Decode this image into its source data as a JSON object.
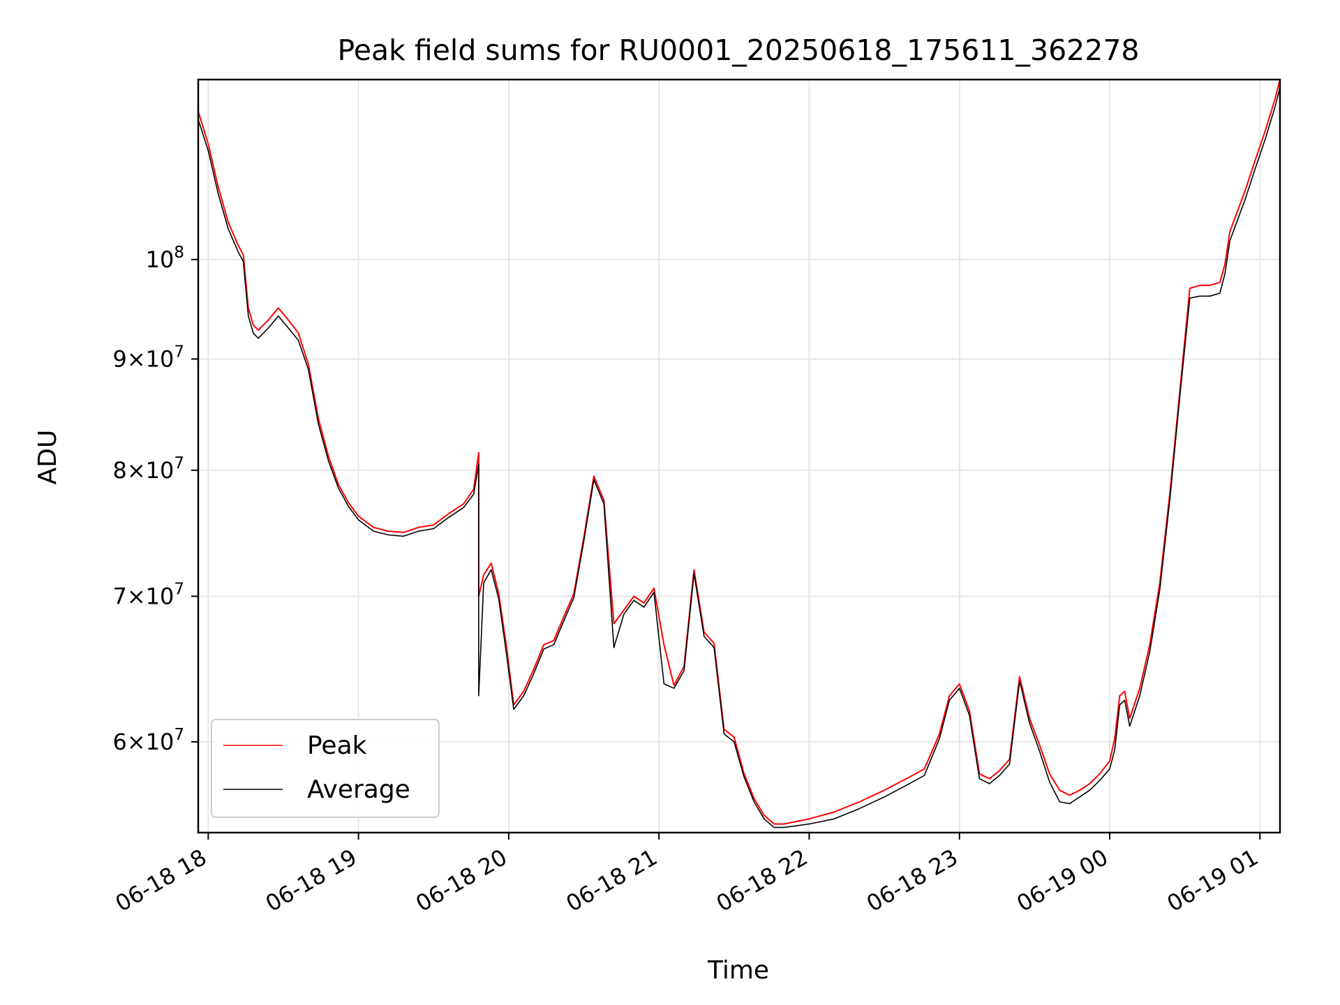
{
  "chart_data": {
    "type": "line",
    "title": "Peak field sums for RU0001_20250618_175611_362278",
    "xlabel": "Time",
    "ylabel": "ADU",
    "yscale": "log",
    "ylim": [
      54500000,
      121000000
    ],
    "xlim": [
      "2025-06-18T17:56",
      "2025-06-19T01:08"
    ],
    "grid": true,
    "legend_position": "lower-left",
    "x_ticks": [
      "2025-06-18T18:00",
      "2025-06-18T19:00",
      "2025-06-18T20:00",
      "2025-06-18T21:00",
      "2025-06-18T22:00",
      "2025-06-18T23:00",
      "2025-06-19T00:00",
      "2025-06-19T01:00"
    ],
    "x_tick_labels": [
      "06-18 18",
      "06-18 19",
      "06-18 20",
      "06-18 21",
      "06-18 22",
      "06-18 23",
      "06-19 00",
      "06-19 01"
    ],
    "y_ticks": [
      {
        "value": 100000000,
        "mantissa": "",
        "exponent": "8"
      },
      {
        "value": 90000000,
        "mantissa": "9",
        "exponent": "7"
      },
      {
        "value": 80000000,
        "mantissa": "8",
        "exponent": "7"
      },
      {
        "value": 70000000,
        "mantissa": "7",
        "exponent": "7"
      },
      {
        "value": 60000000,
        "mantissa": "6",
        "exponent": "7"
      }
    ],
    "series": [
      {
        "name": "Peak",
        "color": "#ff0000",
        "x": [
          "2025-06-18T17:56",
          "2025-06-18T18:00",
          "2025-06-18T18:04",
          "2025-06-18T18:08",
          "2025-06-18T18:12",
          "2025-06-18T18:14",
          "2025-06-18T18:16",
          "2025-06-18T18:18",
          "2025-06-18T18:20",
          "2025-06-18T18:24",
          "2025-06-18T18:28",
          "2025-06-18T18:32",
          "2025-06-18T18:36",
          "2025-06-18T18:40",
          "2025-06-18T18:44",
          "2025-06-18T18:48",
          "2025-06-18T18:52",
          "2025-06-18T18:56",
          "2025-06-18T19:00",
          "2025-06-18T19:06",
          "2025-06-18T19:12",
          "2025-06-18T19:18",
          "2025-06-18T19:24",
          "2025-06-18T19:30",
          "2025-06-18T19:36",
          "2025-06-18T19:42",
          "2025-06-18T19:46",
          "2025-06-18T19:48",
          "2025-06-18T19:48",
          "2025-06-18T19:50",
          "2025-06-18T19:53",
          "2025-06-18T19:56",
          "2025-06-18T19:59",
          "2025-06-18T20:02",
          "2025-06-18T20:06",
          "2025-06-18T20:10",
          "2025-06-18T20:14",
          "2025-06-18T20:18",
          "2025-06-18T20:22",
          "2025-06-18T20:26",
          "2025-06-18T20:30",
          "2025-06-18T20:34",
          "2025-06-18T20:38",
          "2025-06-18T20:42",
          "2025-06-18T20:46",
          "2025-06-18T20:50",
          "2025-06-18T20:54",
          "2025-06-18T20:58",
          "2025-06-18T21:02",
          "2025-06-18T21:06",
          "2025-06-18T21:10",
          "2025-06-18T21:14",
          "2025-06-18T21:18",
          "2025-06-18T21:22",
          "2025-06-18T21:26",
          "2025-06-18T21:30",
          "2025-06-18T21:34",
          "2025-06-18T21:38",
          "2025-06-18T21:42",
          "2025-06-18T21:46",
          "2025-06-18T21:50",
          "2025-06-18T22:00",
          "2025-06-18T22:10",
          "2025-06-18T22:20",
          "2025-06-18T22:30",
          "2025-06-18T22:40",
          "2025-06-18T22:46",
          "2025-06-18T22:52",
          "2025-06-18T22:56",
          "2025-06-18T23:00",
          "2025-06-18T23:04",
          "2025-06-18T23:08",
          "2025-06-18T23:12",
          "2025-06-18T23:16",
          "2025-06-18T23:20",
          "2025-06-18T23:24",
          "2025-06-18T23:28",
          "2025-06-18T23:32",
          "2025-06-18T23:36",
          "2025-06-18T23:40",
          "2025-06-18T23:44",
          "2025-06-18T23:48",
          "2025-06-18T23:52",
          "2025-06-18T23:56",
          "2025-06-19T00:00",
          "2025-06-19T00:02",
          "2025-06-19T00:04",
          "2025-06-19T00:06",
          "2025-06-19T00:08",
          "2025-06-19T00:12",
          "2025-06-19T00:16",
          "2025-06-19T00:20",
          "2025-06-19T00:24",
          "2025-06-19T00:28",
          "2025-06-19T00:32",
          "2025-06-19T00:36",
          "2025-06-19T00:40",
          "2025-06-19T00:44",
          "2025-06-19T00:46",
          "2025-06-19T00:48",
          "2025-06-19T00:50",
          "2025-06-19T00:54",
          "2025-06-19T00:58",
          "2025-06-19T01:02",
          "2025-06-19T01:06",
          "2025-06-19T01:08"
        ],
        "values": [
          117000000,
          113000000,
          108000000,
          104000000,
          101500000,
          100500000,
          95000000,
          93300000,
          92800000,
          93800000,
          95000000,
          93800000,
          92500000,
          89500000,
          84500000,
          81200000,
          78800000,
          77300000,
          76200000,
          75300000,
          75000000,
          74900000,
          75300000,
          75500000,
          76400000,
          77200000,
          78400000,
          81500000,
          70000000,
          71600000,
          72500000,
          70200000,
          66500000,
          62400000,
          63300000,
          64800000,
          66500000,
          66800000,
          68500000,
          70200000,
          74500000,
          79500000,
          77500000,
          68000000,
          69000000,
          70000000,
          69500000,
          70600000,
          66500000,
          63700000,
          65000000,
          72000000,
          67400000,
          66600000,
          60800000,
          60300000,
          58000000,
          56500000,
          55500000,
          55000000,
          55000000,
          55300000,
          55700000,
          56300000,
          57000000,
          57800000,
          58300000,
          60500000,
          63000000,
          63800000,
          62000000,
          58000000,
          57700000,
          58200000,
          58900000,
          64300000,
          61500000,
          59800000,
          58000000,
          57000000,
          56700000,
          57000000,
          57400000,
          58000000,
          58800000,
          60200000,
          63000000,
          63300000,
          61500000,
          63500000,
          66500000,
          71000000,
          78000000,
          87000000,
          97000000,
          97300000,
          97300000,
          97600000,
          99500000,
          103000000,
          104500000,
          107500000,
          111000000,
          114500000,
          118500000,
          121000000
        ]
      },
      {
        "name": "Average",
        "color": "#000000",
        "x": [
          "2025-06-18T17:56",
          "2025-06-18T18:00",
          "2025-06-18T18:04",
          "2025-06-18T18:08",
          "2025-06-18T18:12",
          "2025-06-18T18:14",
          "2025-06-18T18:16",
          "2025-06-18T18:18",
          "2025-06-18T18:20",
          "2025-06-18T18:24",
          "2025-06-18T18:28",
          "2025-06-18T18:32",
          "2025-06-18T18:36",
          "2025-06-18T18:40",
          "2025-06-18T18:44",
          "2025-06-18T18:48",
          "2025-06-18T18:52",
          "2025-06-18T18:56",
          "2025-06-18T19:00",
          "2025-06-18T19:06",
          "2025-06-18T19:12",
          "2025-06-18T19:18",
          "2025-06-18T19:24",
          "2025-06-18T19:30",
          "2025-06-18T19:36",
          "2025-06-18T19:42",
          "2025-06-18T19:46",
          "2025-06-18T19:48",
          "2025-06-18T19:48",
          "2025-06-18T19:50",
          "2025-06-18T19:53",
          "2025-06-18T19:56",
          "2025-06-18T19:59",
          "2025-06-18T20:02",
          "2025-06-18T20:06",
          "2025-06-18T20:10",
          "2025-06-18T20:14",
          "2025-06-18T20:18",
          "2025-06-18T20:22",
          "2025-06-18T20:26",
          "2025-06-18T20:30",
          "2025-06-18T20:34",
          "2025-06-18T20:38",
          "2025-06-18T20:42",
          "2025-06-18T20:46",
          "2025-06-18T20:50",
          "2025-06-18T20:54",
          "2025-06-18T20:58",
          "2025-06-18T21:02",
          "2025-06-18T21:06",
          "2025-06-18T21:10",
          "2025-06-18T21:14",
          "2025-06-18T21:18",
          "2025-06-18T21:22",
          "2025-06-18T21:26",
          "2025-06-18T21:30",
          "2025-06-18T21:34",
          "2025-06-18T21:38",
          "2025-06-18T21:42",
          "2025-06-18T21:46",
          "2025-06-18T21:50",
          "2025-06-18T22:00",
          "2025-06-18T22:10",
          "2025-06-18T22:20",
          "2025-06-18T22:30",
          "2025-06-18T22:40",
          "2025-06-18T22:46",
          "2025-06-18T22:52",
          "2025-06-18T22:56",
          "2025-06-18T23:00",
          "2025-06-18T23:04",
          "2025-06-18T23:08",
          "2025-06-18T23:12",
          "2025-06-18T23:16",
          "2025-06-18T23:20",
          "2025-06-18T23:24",
          "2025-06-18T23:28",
          "2025-06-18T23:32",
          "2025-06-18T23:36",
          "2025-06-18T23:40",
          "2025-06-18T23:44",
          "2025-06-18T23:48",
          "2025-06-18T23:52",
          "2025-06-18T23:56",
          "2025-06-19T00:00",
          "2025-06-19T00:02",
          "2025-06-19T00:04",
          "2025-06-19T00:06",
          "2025-06-19T00:08",
          "2025-06-19T00:12",
          "2025-06-19T00:16",
          "2025-06-19T00:20",
          "2025-06-19T00:24",
          "2025-06-19T00:28",
          "2025-06-19T00:32",
          "2025-06-19T00:36",
          "2025-06-19T00:40",
          "2025-06-19T00:44",
          "2025-06-19T00:46",
          "2025-06-19T00:48",
          "2025-06-19T00:50",
          "2025-06-19T00:54",
          "2025-06-19T00:58",
          "2025-06-19T01:02",
          "2025-06-19T01:06",
          "2025-06-19T01:08"
        ],
        "values": [
          116000000,
          112200000,
          107200000,
          103300000,
          100800000,
          99800000,
          94200000,
          92500000,
          92000000,
          93000000,
          94200000,
          93000000,
          91800000,
          89000000,
          84000000,
          80800000,
          78500000,
          77000000,
          75900000,
          75000000,
          74700000,
          74600000,
          75000000,
          75200000,
          76100000,
          76900000,
          78000000,
          80500000,
          63000000,
          71000000,
          72000000,
          69800000,
          66000000,
          62100000,
          63000000,
          64500000,
          66200000,
          66500000,
          68200000,
          69900000,
          74200000,
          79200000,
          77200000,
          66300000,
          68700000,
          69700000,
          69200000,
          70300000,
          63800000,
          63500000,
          64700000,
          71700000,
          67100000,
          66300000,
          60500000,
          60000000,
          57800000,
          56300000,
          55300000,
          54800000,
          54800000,
          55000000,
          55300000,
          55900000,
          56600000,
          57400000,
          57900000,
          60200000,
          62700000,
          63500000,
          61700000,
          57700000,
          57400000,
          57900000,
          58600000,
          64000000,
          61200000,
          59400000,
          57500000,
          56300000,
          56200000,
          56600000,
          57000000,
          57600000,
          58300000,
          59500000,
          62400000,
          62700000,
          61000000,
          63000000,
          66000000,
          70500000,
          77500000,
          86500000,
          96000000,
          96200000,
          96200000,
          96500000,
          98500000,
          102000000,
          103500000,
          106500000,
          110000000,
          113500000,
          117500000,
          120000000
        ]
      }
    ]
  }
}
